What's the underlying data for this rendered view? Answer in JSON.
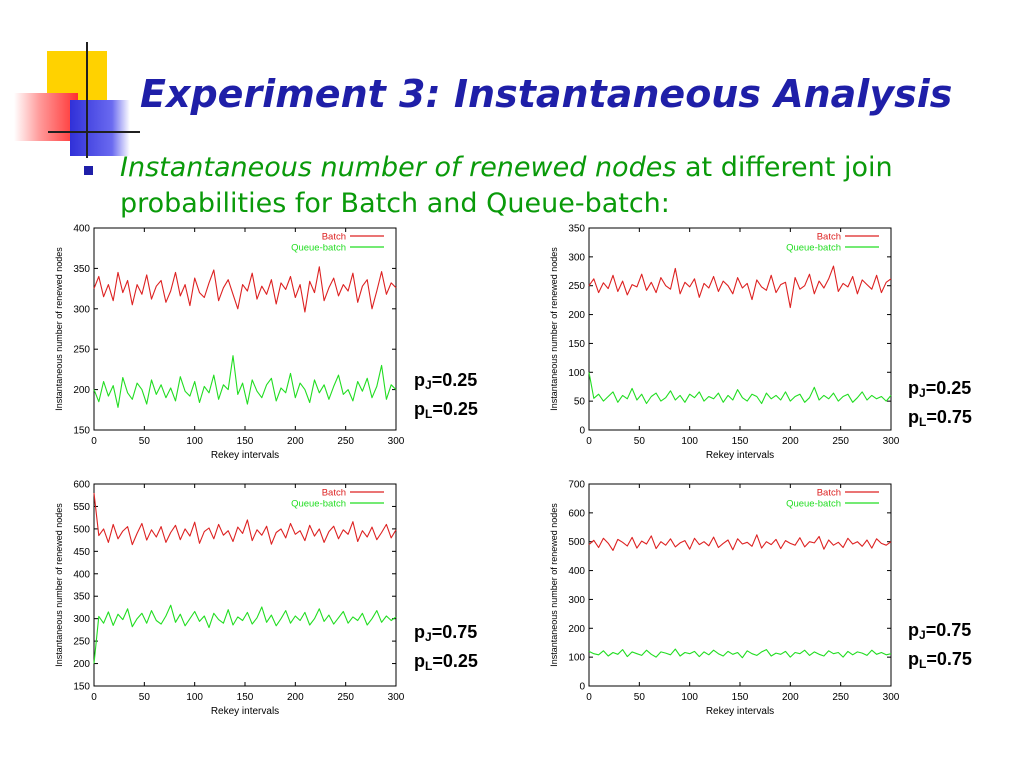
{
  "slide": {
    "title": "Experiment 3: Instantaneous Analysis",
    "bullet_em": "Instantaneous number of renewed nodes",
    "bullet_rest": " at different join probabilities for Batch and Queue-batch:"
  },
  "colors": {
    "title": "#1f1fa8",
    "bullet": "#0a9a0a",
    "batch": "#dd2222",
    "queue": "#22dd22"
  },
  "charts": [
    {
      "pj_sub": "J",
      "pj_val": "=0.25",
      "pl_sub": "L",
      "pl_val": "=0.25"
    },
    {
      "pj_sub": "J",
      "pj_val": "=0.25",
      "pl_sub": "L",
      "pl_val": "=0.75"
    },
    {
      "pj_sub": "J",
      "pj_val": "=0.75",
      "pl_sub": "L",
      "pl_val": "=0.25"
    },
    {
      "pj_sub": "J",
      "pj_val": "=0.75",
      "pl_sub": "L",
      "pl_val": "=0.75"
    }
  ],
  "chart_data": [
    {
      "type": "line",
      "xlabel": "Rekey intervals",
      "ylabel": "Instantaneous number of renewed nodes",
      "xlim": [
        0,
        300
      ],
      "ylim": [
        150,
        400
      ],
      "xticks": [
        0,
        50,
        100,
        150,
        200,
        250,
        300
      ],
      "yticks": [
        150,
        200,
        250,
        300,
        350,
        400
      ],
      "legend_position": "top-right",
      "series": [
        {
          "name": "Batch",
          "color": "#dd2222",
          "values": [
            325,
            340,
            315,
            330,
            310,
            345,
            320,
            335,
            305,
            330,
            318,
            342,
            312,
            328,
            335,
            308,
            322,
            345,
            316,
            330,
            304,
            338,
            320,
            314,
            332,
            348,
            310,
            326,
            336,
            318,
            300,
            330,
            322,
            344,
            312,
            328,
            318,
            336,
            306,
            332,
            324,
            340,
            314,
            330,
            296,
            334,
            320,
            352,
            310,
            326,
            338,
            316,
            330,
            322,
            344,
            308,
            328,
            336,
            300,
            322,
            346,
            318,
            332,
            326
          ]
        },
        {
          "name": "Queue-batch",
          "color": "#22dd22",
          "values": [
            200,
            185,
            210,
            192,
            205,
            178,
            215,
            196,
            188,
            208,
            200,
            182,
            212,
            194,
            206,
            190,
            202,
            186,
            216,
            198,
            192,
            210,
            184,
            204,
            196,
            218,
            188,
            206,
            200,
            242,
            194,
            208,
            182,
            212,
            198,
            190,
            206,
            214,
            186,
            202,
            196,
            220,
            190,
            208,
            200,
            184,
            212,
            196,
            206,
            188,
            204,
            218,
            194,
            200,
            186,
            210,
            198,
            214,
            190,
            204,
            230,
            188,
            206,
            200
          ]
        }
      ]
    },
    {
      "type": "line",
      "xlabel": "Rekey intervals",
      "ylabel": "Instantaneous number of renewed nodes",
      "xlim": [
        0,
        300
      ],
      "ylim": [
        0,
        350
      ],
      "xticks": [
        0,
        50,
        100,
        150,
        200,
        250,
        300
      ],
      "yticks": [
        0,
        50,
        100,
        150,
        200,
        250,
        300,
        350
      ],
      "legend_position": "top-right",
      "series": [
        {
          "name": "Batch",
          "color": "#dd2222",
          "values": [
            250,
            262,
            238,
            255,
            245,
            268,
            240,
            258,
            234,
            252,
            248,
            270,
            242,
            256,
            238,
            264,
            250,
            244,
            280,
            236,
            256,
            248,
            262,
            230,
            254,
            246,
            266,
            240,
            258,
            250,
            236,
            264,
            246,
            254,
            226,
            260,
            248,
            242,
            268,
            238,
            252,
            256,
            212,
            264,
            244,
            250,
            270,
            236,
            258,
            246,
            262,
            284,
            240,
            254,
            248,
            266,
            236,
            260,
            252,
            244,
            268,
            238,
            256,
            262
          ]
        },
        {
          "name": "Queue-batch",
          "color": "#22dd22",
          "values": [
            100,
            55,
            62,
            50,
            58,
            66,
            48,
            60,
            54,
            72,
            52,
            62,
            46,
            58,
            64,
            50,
            56,
            68,
            52,
            60,
            48,
            62,
            56,
            66,
            50,
            58,
            54,
            64,
            48,
            60,
            52,
            70,
            56,
            50,
            62,
            58,
            46,
            64,
            54,
            60,
            52,
            66,
            50,
            58,
            62,
            48,
            56,
            74,
            52,
            60,
            54,
            64,
            50,
            58,
            62,
            48,
            56,
            66,
            52,
            60,
            54,
            58,
            50,
            60
          ]
        }
      ]
    },
    {
      "type": "line",
      "xlabel": "Rekey intervals",
      "ylabel": "Instantaneous number of renewed nodes",
      "xlim": [
        0,
        300
      ],
      "ylim": [
        150,
        600
      ],
      "xticks": [
        0,
        50,
        100,
        150,
        200,
        250,
        300
      ],
      "yticks": [
        150,
        200,
        250,
        300,
        350,
        400,
        450,
        500,
        550,
        600
      ],
      "legend_position": "top-right",
      "series": [
        {
          "name": "Batch",
          "color": "#dd2222",
          "values": [
            580,
            485,
            500,
            470,
            510,
            478,
            495,
            505,
            465,
            490,
            512,
            475,
            498,
            482,
            505,
            470,
            492,
            508,
            476,
            500,
            484,
            515,
            468,
            494,
            502,
            478,
            510,
            486,
            496,
            472,
            504,
            490,
            520,
            474,
            498,
            486,
            506,
            466,
            492,
            500,
            480,
            512,
            488,
            496,
            474,
            508,
            484,
            500,
            470,
            494,
            506,
            478,
            498,
            488,
            516,
            472,
            496,
            482,
            504,
            476,
            492,
            510,
            480,
            498
          ]
        },
        {
          "name": "Queue-batch",
          "color": "#22dd22",
          "values": [
            200,
            305,
            290,
            315,
            285,
            310,
            298,
            322,
            282,
            300,
            312,
            290,
            318,
            296,
            288,
            306,
            330,
            292,
            310,
            284,
            300,
            316,
            294,
            306,
            280,
            312,
            298,
            290,
            320,
            286,
            304,
            296,
            314,
            288,
            302,
            326,
            292,
            308,
            284,
            300,
            318,
            290,
            306,
            296,
            314,
            286,
            300,
            322,
            294,
            308,
            288,
            302,
            316,
            290,
            304,
            296,
            312,
            286,
            300,
            318,
            292,
            306,
            296,
            304
          ]
        }
      ]
    },
    {
      "type": "line",
      "xlabel": "Rekey intervals",
      "ylabel": "Instantaneous number of renewed nodes",
      "xlim": [
        0,
        300
      ],
      "ylim": [
        0,
        700
      ],
      "xticks": [
        0,
        50,
        100,
        150,
        200,
        250,
        300
      ],
      "yticks": [
        0,
        100,
        200,
        300,
        400,
        500,
        600,
        700
      ],
      "legend_position": "top-right",
      "series": [
        {
          "name": "Batch",
          "color": "#dd2222",
          "values": [
            490,
            505,
            480,
            512,
            495,
            470,
            508,
            498,
            485,
            515,
            478,
            502,
            492,
            520,
            476,
            500,
            488,
            510,
            482,
            496,
            504,
            474,
            512,
            490,
            500,
            486,
            516,
            480,
            494,
            506,
            472,
            510,
            492,
            498,
            484,
            524,
            478,
            500,
            490,
            508,
            476,
            504,
            494,
            488,
            514,
            482,
            500,
            496,
            518,
            474,
            506,
            488,
            498,
            480,
            512,
            492,
            500,
            484,
            506,
            478,
            510,
            494,
            488,
            500
          ]
        },
        {
          "name": "Queue-batch",
          "color": "#22dd22",
          "values": [
            120,
            112,
            108,
            122,
            104,
            116,
            110,
            126,
            102,
            118,
            112,
            106,
            124,
            110,
            100,
            118,
            114,
            108,
            128,
            104,
            116,
            112,
            120,
            102,
            118,
            108,
            124,
            112,
            104,
            120,
            110,
            116,
            98,
            122,
            112,
            106,
            118,
            126,
            104,
            114,
            110,
            120,
            100,
            116,
            112,
            124,
            106,
            118,
            110,
            104,
            122,
            112,
            116,
            100,
            120,
            108,
            118,
            114,
            106,
            124,
            110,
            116,
            108,
            112
          ]
        }
      ]
    }
  ]
}
